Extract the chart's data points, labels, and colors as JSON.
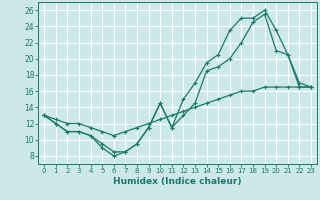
{
  "title": "",
  "xlabel": "Humidex (Indice chaleur)",
  "xlim": [
    -0.5,
    23.5
  ],
  "ylim": [
    7,
    27
  ],
  "yticks": [
    8,
    10,
    12,
    14,
    16,
    18,
    20,
    22,
    24,
    26
  ],
  "xticks": [
    0,
    1,
    2,
    3,
    4,
    5,
    6,
    7,
    8,
    9,
    10,
    11,
    12,
    13,
    14,
    15,
    16,
    17,
    18,
    19,
    20,
    21,
    22,
    23
  ],
  "line_color": "#1a7a6a",
  "bg_color": "#cce8ea",
  "grid_color": "#ffffff",
  "line1_y": [
    13,
    12,
    11,
    11,
    10.5,
    9.5,
    8.5,
    8.5,
    9.5,
    11.5,
    14.5,
    11.5,
    13,
    14.5,
    18.5,
    19,
    20,
    22,
    24.5,
    25.5,
    21,
    20.5,
    16.5,
    16.5
  ],
  "line2_y": [
    13,
    12,
    11,
    11,
    10.5,
    9.0,
    8.0,
    8.5,
    9.5,
    11.5,
    14.5,
    11.5,
    15,
    17,
    19.5,
    20.5,
    23.5,
    25,
    25,
    26,
    23.5,
    20.5,
    17,
    16.5
  ],
  "line3_y": [
    13,
    12.5,
    12,
    12,
    11.5,
    11,
    10.5,
    11,
    11.5,
    12,
    12.5,
    13,
    13.5,
    14,
    14.5,
    15,
    15.5,
    16,
    16,
    16.5,
    16.5,
    16.5,
    16.5,
    16.5
  ]
}
